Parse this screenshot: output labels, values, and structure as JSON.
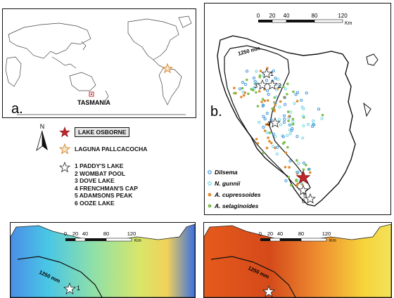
{
  "panel_a": {
    "label": "a.",
    "region_label": "TASMANIA"
  },
  "legend": {
    "north_letter": "N",
    "items": [
      {
        "name": "LAKE OSBORNE",
        "color": "#c0262c"
      },
      {
        "name": "LAGUNA PALLCACOCHA",
        "color": "#d8893a"
      }
    ],
    "lakes": [
      "1 PADDY'S LAKE",
      "2 WOMBAT POOL",
      "3 DOVE LAKE",
      "4 FRENCHMAN'S CAP",
      "5 ADAMSONS PEAK",
      "6 OOZE LAKE"
    ]
  },
  "panel_b": {
    "label": "b.",
    "scale": {
      "ticks": [
        "0",
        "20",
        "40",
        "80",
        "120"
      ],
      "unit": "Km"
    },
    "isohyet": "1250 mm",
    "site_numbers": [
      "1",
      "2",
      "3",
      "4",
      "5",
      "6"
    ],
    "species": [
      {
        "name": "Dilsema",
        "color": "#3a8fd6",
        "style": "ring"
      },
      {
        "name": "N. gunnii",
        "color": "#6fd2e0",
        "style": "ring"
      },
      {
        "name": "A. cupressoides",
        "color": "#e08a2e",
        "style": "dot"
      },
      {
        "name": "A. selaginoides",
        "color": "#7cc04a",
        "style": "dot"
      }
    ]
  },
  "panel_c": {
    "scale": {
      "ticks": [
        "0",
        "20",
        "40",
        "80",
        "120"
      ],
      "unit": "Km"
    },
    "isohyet": "1250 mm",
    "site_number": "1"
  },
  "panel_d": {
    "scale": {
      "ticks": [
        "0",
        "20",
        "40",
        "80",
        "120"
      ],
      "unit": "Km"
    },
    "isohyet": "1250 mm"
  }
}
